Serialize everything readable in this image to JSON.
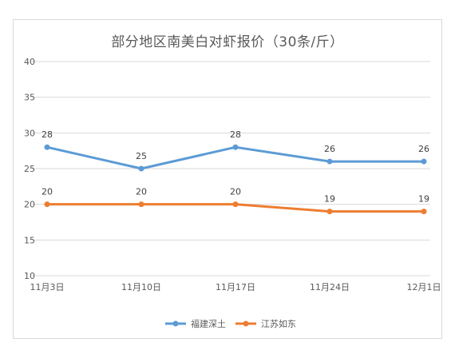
{
  "chart_data": {
    "type": "line",
    "title": "部分地区南美白对虾报价（30条/斤）",
    "xlabel": "",
    "ylabel": "",
    "categories": [
      "11月3日",
      "11月10日",
      "11月17日",
      "11月24日",
      "12月1日"
    ],
    "ylim": [
      10,
      40
    ],
    "yticks": [
      10,
      15,
      20,
      25,
      30,
      35,
      40
    ],
    "grid": true,
    "legend_position": "bottom",
    "series": [
      {
        "name": "福建深土",
        "values": [
          28,
          25,
          28,
          26,
          26
        ],
        "color": "#5b9bd5"
      },
      {
        "name": "江苏如东",
        "values": [
          20,
          20,
          20,
          19,
          19
        ],
        "color": "#ed7d31"
      }
    ]
  },
  "colors": {
    "grid": "#d9d9d9",
    "axis_text": "#595959",
    "label_text": "#404040"
  }
}
